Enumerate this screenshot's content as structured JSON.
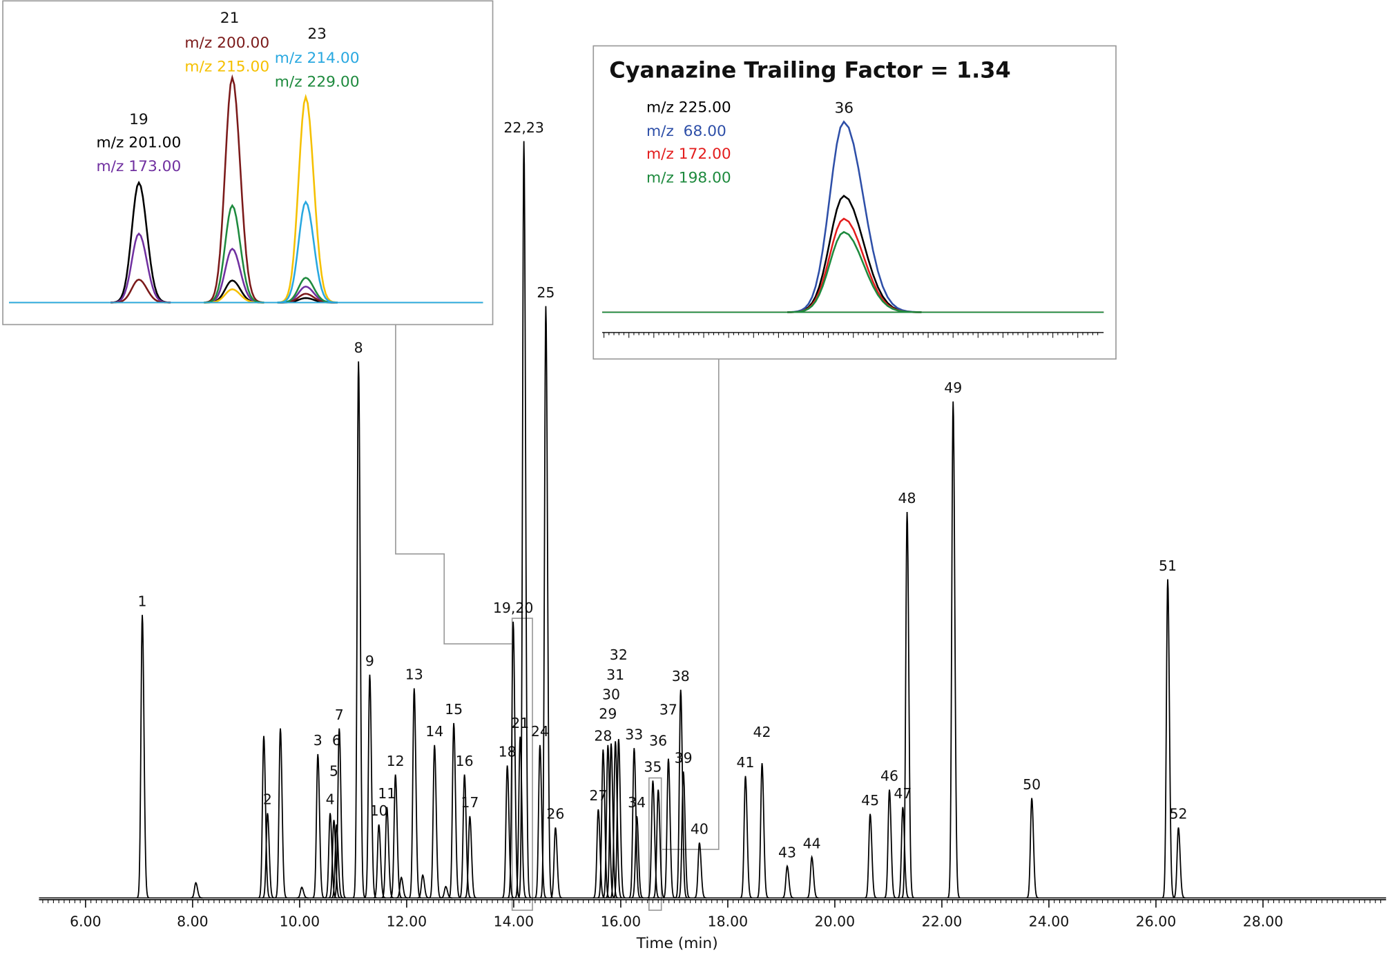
{
  "chart_data": [
    {
      "type": "chromatogram",
      "x_label": "Time (min)",
      "color": "#000000",
      "xlim": [
        5.13,
        30.3
      ],
      "ylim": [
        0,
        100
      ],
      "xticks": [
        {
          "value": 6,
          "label": "6.00"
        },
        {
          "value": 8,
          "label": "8.00"
        },
        {
          "value": 10,
          "label": "10.00"
        },
        {
          "value": 12,
          "label": "12.00"
        },
        {
          "value": 14,
          "label": "14.00"
        },
        {
          "value": 16,
          "label": "16.00"
        },
        {
          "value": 18,
          "label": "18.00"
        },
        {
          "value": 20,
          "label": "20.00"
        },
        {
          "value": 22,
          "label": "22.00"
        },
        {
          "value": 24,
          "label": "24.00"
        },
        {
          "value": 26,
          "label": "26.00"
        },
        {
          "value": 28,
          "label": "28.00"
        }
      ],
      "x": [
        7.06,
        8.06,
        9.33,
        9.4,
        9.64,
        10.04,
        10.34,
        10.57,
        10.64,
        10.69,
        10.74,
        11.1,
        11.31,
        11.48,
        11.63,
        11.79,
        11.9,
        12.14,
        12.3,
        12.52,
        12.73,
        12.88,
        13.08,
        13.18,
        13.88,
        13.99,
        14.12,
        14.19,
        14.49,
        14.6,
        14.78,
        15.58,
        15.67,
        15.76,
        15.82,
        15.9,
        15.96,
        16.25,
        16.3,
        16.6,
        16.7,
        16.89,
        17.12,
        17.17,
        17.47,
        18.33,
        18.64,
        19.11,
        19.57,
        20.66,
        21.02,
        21.27,
        21.35,
        22.21,
        23.68,
        26.22,
        26.42
      ],
      "values": [
        37.4,
        2.0,
        21.4,
        11.2,
        22.4,
        1.4,
        19.0,
        11.2,
        10.3,
        9.7,
        22.4,
        70.9,
        29.5,
        9.7,
        12.0,
        16.3,
        2.7,
        27.7,
        3.0,
        20.2,
        1.5,
        23.1,
        16.3,
        10.8,
        17.5,
        36.5,
        21.3,
        100,
        20.2,
        78.2,
        9.3,
        11.7,
        19.6,
        20.2,
        20.4,
        20.7,
        21.0,
        19.8,
        10.8,
        15.5,
        14.3,
        18.4,
        27.5,
        16.7,
        7.3,
        16.1,
        17.8,
        4.2,
        5.4,
        11.1,
        14.3,
        12.0,
        51.0,
        65.6,
        13.2,
        42.1,
        9.3
      ],
      "labels": [
        "1",
        null,
        null,
        "2",
        null,
        null,
        "3",
        "4",
        "5",
        "6",
        "7",
        "8",
        "9",
        "10",
        "11",
        "12",
        null,
        "13",
        null,
        "14",
        null,
        "15",
        "16",
        "17",
        "18",
        "19,20",
        "21",
        "22,23",
        "24",
        "25",
        "26",
        "27",
        "28",
        "29",
        "30",
        "31",
        "32",
        "33",
        "34",
        "35",
        "36",
        "37",
        "38",
        "39",
        "40",
        "41",
        "42",
        "43",
        "44",
        "45",
        "46",
        "47",
        "48",
        "49",
        "50",
        "51",
        "52"
      ]
    },
    {
      "type": "overlay",
      "xlim": [
        0,
        100
      ],
      "ylim": [
        0,
        100
      ],
      "annotations": [
        "19",
        "21",
        "23"
      ],
      "series": [
        {
          "name": "m/z 201.00",
          "color": "#000000",
          "x": [
            27.4,
            47.1,
            62.6
          ],
          "values": [
            53.3,
            9.8,
            2.0
          ]
        },
        {
          "name": "m/z 173.00",
          "color": "#7030a0",
          "x": [
            27.4,
            47.1,
            62.6
          ],
          "values": [
            30.6,
            23.9,
            7.1
          ]
        },
        {
          "name": "m/z 200.00",
          "color": "#7b1a1a",
          "x": [
            27.4,
            47.1,
            62.6
          ],
          "values": [
            10.2,
            100,
            3.9
          ]
        },
        {
          "name": "m/z 215.00",
          "color": "#f5c000",
          "x": [
            47.1,
            62.6
          ],
          "values": [
            5.9,
            91.4
          ]
        },
        {
          "name": "m/z 229.00",
          "color": "#1e8a3e",
          "x": [
            47.1,
            62.6
          ],
          "values": [
            43.1,
            11.0
          ]
        },
        {
          "name": "m/z 214.00",
          "color": "#29a8e0",
          "x": [
            62.6
          ],
          "values": [
            44.7
          ]
        }
      ]
    },
    {
      "type": "overlay",
      "title": "Cyanazine Trailing Factor = 1.34",
      "xlim": [
        0,
        100
      ],
      "ylim": [
        0,
        100
      ],
      "annotations": [
        "36"
      ],
      "series": [
        {
          "name": "m/z 225.00",
          "color": "#000000",
          "x": [
            48.2
          ],
          "values": [
            61.1
          ]
        },
        {
          "name": "m/z  68.00",
          "color": "#2e4fa8",
          "x": [
            48.2
          ],
          "values": [
            100
          ]
        },
        {
          "name": "m/z 172.00",
          "color": "#e31d1d",
          "x": [
            48.2
          ],
          "values": [
            49.1
          ]
        },
        {
          "name": "m/z 198.00",
          "color": "#1e8a3e",
          "x": [
            48.2
          ],
          "values": [
            42.1
          ]
        }
      ]
    }
  ]
}
